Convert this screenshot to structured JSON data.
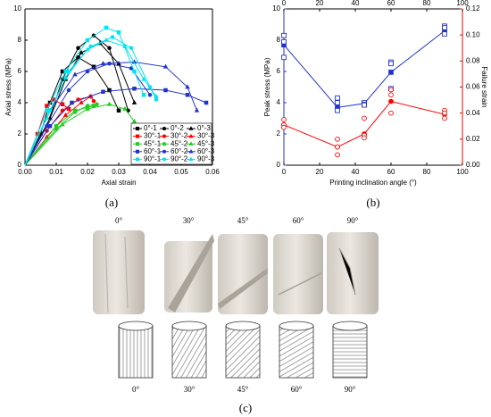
{
  "chart_data": [
    {
      "type": "line",
      "label": "(a)",
      "xlabel": "Axial strain",
      "ylabel": "Axial stress (MPa)",
      "xlim": [
        0,
        0.06
      ],
      "xticks": [
        {
          "value": 0,
          "label": "0.00"
        },
        {
          "value": 0.01,
          "label": "0.01"
        },
        {
          "value": 0.02,
          "label": "0.02"
        },
        {
          "value": 0.03,
          "label": "0.03"
        },
        {
          "value": 0.04,
          "label": "0.04"
        },
        {
          "value": 0.05,
          "label": "0.05"
        },
        {
          "value": 0.06,
          "label": "0.06"
        }
      ],
      "ylim": [
        0,
        10
      ],
      "yticks": [
        0,
        2,
        4,
        6,
        8,
        10
      ],
      "legend": "lower right",
      "series": [
        {
          "name": "0°-1",
          "color": "#000000",
          "marker": "square",
          "x": [
            0,
            0.005,
            0.008,
            0.012,
            0.017,
            0.022,
            0.027,
            0.03
          ],
          "values": [
            0,
            2,
            4,
            6,
            6.9,
            6.3,
            4.8,
            3.5
          ]
        },
        {
          "name": "0°-2",
          "color": "#000000",
          "marker": "circle",
          "x": [
            0,
            0.007,
            0.012,
            0.017,
            0.022,
            0.027,
            0.033
          ],
          "values": [
            0,
            2.5,
            5.5,
            7.5,
            8.3,
            7.5,
            3.5
          ]
        },
        {
          "name": "0°-3",
          "color": "#000000",
          "marker": "triangle",
          "x": [
            0,
            0.008,
            0.013,
            0.018,
            0.024,
            0.03,
            0.035
          ],
          "values": [
            0,
            3,
            5.5,
            7.2,
            7.8,
            6.5,
            4
          ]
        },
        {
          "name": "30°-1",
          "color": "#ff0000",
          "marker": "square",
          "x": [
            0,
            0.004,
            0.007,
            0.009,
            0.012,
            0.014
          ],
          "values": [
            0,
            2,
            3.8,
            4.2,
            3.9,
            3.6
          ]
        },
        {
          "name": "30°-2",
          "color": "#ff0000",
          "marker": "circle",
          "x": [
            0,
            0.007,
            0.012,
            0.017,
            0.021,
            0.022
          ],
          "values": [
            0,
            2.2,
            3.5,
            4.2,
            4.4,
            4.1
          ]
        },
        {
          "name": "30°-3",
          "color": "#ff0000",
          "marker": "triangle",
          "x": [
            0,
            0.007,
            0.013,
            0.018,
            0.021
          ],
          "values": [
            0,
            1.8,
            3.2,
            4,
            4.4
          ]
        },
        {
          "name": "45°-1",
          "color": "#22cc22",
          "marker": "square",
          "x": [
            0,
            0.01,
            0.016,
            0.02,
            0.022
          ],
          "values": [
            0,
            2.5,
            3.5,
            3.7,
            3.8
          ]
        },
        {
          "name": "45°-2",
          "color": "#22cc22",
          "marker": "circle",
          "x": [
            0,
            0.01,
            0.016,
            0.02,
            0.023
          ],
          "values": [
            0,
            2.3,
            3.4,
            3.8,
            3.9
          ]
        },
        {
          "name": "45°-3",
          "color": "#22cc22",
          "marker": "triangle",
          "x": [
            0,
            0.012,
            0.02,
            0.027,
            0.032,
            0.035
          ],
          "values": [
            0,
            2.6,
            3.6,
            3.9,
            3.6,
            2.8
          ]
        },
        {
          "name": "60°-1",
          "color": "#2233cc",
          "marker": "square",
          "x": [
            0,
            0.008,
            0.015,
            0.025,
            0.035,
            0.045,
            0.052,
            0.058
          ],
          "values": [
            0,
            2.5,
            4,
            4.7,
            4.9,
            4.8,
            4.5,
            4
          ]
        },
        {
          "name": "60°-2",
          "color": "#2233cc",
          "marker": "circle",
          "x": [
            0,
            0.007,
            0.014,
            0.02,
            0.027,
            0.034,
            0.04
          ],
          "values": [
            0,
            2.5,
            4.8,
            6,
            6.5,
            6.2,
            4.5
          ]
        },
        {
          "name": "60°-3",
          "color": "#2233cc",
          "marker": "triangle",
          "x": [
            0,
            0.008,
            0.016,
            0.025,
            0.035,
            0.045,
            0.052,
            0.055
          ],
          "values": [
            0,
            3.5,
            5.8,
            6.5,
            6.6,
            6.3,
            5,
            3.5
          ]
        },
        {
          "name": "90°-1",
          "color": "#00e5ee",
          "marker": "square",
          "x": [
            0,
            0.007,
            0.013,
            0.02,
            0.026,
            0.03,
            0.035,
            0.038
          ],
          "values": [
            0,
            3.5,
            6,
            8,
            8.8,
            8.5,
            6,
            4.5
          ]
        },
        {
          "name": "90°-2",
          "color": "#00e5ee",
          "marker": "circle",
          "x": [
            0,
            0.008,
            0.014,
            0.021,
            0.028,
            0.034,
            0.04,
            0.042
          ],
          "values": [
            0,
            3.5,
            6,
            7.6,
            8.2,
            7.5,
            5,
            4.2
          ]
        },
        {
          "name": "90°-3",
          "color": "#00e5ee",
          "marker": "triangle",
          "x": [
            0,
            0.007,
            0.013,
            0.02,
            0.026,
            0.032,
            0.038,
            0.042
          ],
          "values": [
            0,
            3,
            5.6,
            7.4,
            8,
            7.6,
            5.5,
            4.4
          ]
        }
      ]
    },
    {
      "type": "line",
      "label": "(b)",
      "xlabel": "Printing inclination angle (°)",
      "ylabel": "Peak stress (MPa)",
      "y2label": "Failure strain",
      "xlim": [
        0,
        100
      ],
      "xticks": [
        0,
        20,
        40,
        60,
        80,
        100
      ],
      "ylim": [
        0,
        10
      ],
      "yticks": [
        0,
        2,
        4,
        6,
        8,
        10
      ],
      "ycolor": "#2233cc",
      "y2lim": [
        0,
        0.12
      ],
      "y2ticks": [
        {
          "value": 0,
          "label": "0.00"
        },
        {
          "value": 0.02,
          "label": "0.02"
        },
        {
          "value": 0.04,
          "label": "0.04"
        },
        {
          "value": 0.06,
          "label": "0.06"
        },
        {
          "value": 0.08,
          "label": "0.08"
        },
        {
          "value": 0.1,
          "label": "0.10"
        },
        {
          "value": 0.12,
          "label": "0.12"
        }
      ],
      "y2color": "#ff0000",
      "series": [
        {
          "color": "#2233cc",
          "marker": "square",
          "filled": true,
          "connect": true,
          "x": [
            0,
            30,
            45,
            60,
            90
          ],
          "values": [
            7.7,
            3.7,
            3.95,
            5.95,
            8.6
          ]
        },
        {
          "color": "#2233cc",
          "marker": "square",
          "filled": false,
          "connect": false,
          "x": [
            0,
            0,
            0,
            30,
            30,
            30,
            45,
            45,
            45,
            60,
            60,
            60,
            90,
            90,
            90
          ],
          "values": [
            8.3,
            7.9,
            6.9,
            4.3,
            4,
            3.5,
            4,
            3.9,
            3.85,
            6.6,
            6.5,
            4.9,
            8.9,
            8.8,
            8.4
          ]
        },
        {
          "color": "#ff0000",
          "marker": "circle",
          "filled": true,
          "connect": true,
          "axis": "y2",
          "x": [
            0,
            30,
            45,
            60,
            90
          ],
          "values": [
            0.031,
            0.014,
            0.024,
            0.049,
            0.039
          ]
        },
        {
          "color": "#ff0000",
          "marker": "circle",
          "filled": false,
          "connect": false,
          "axis": "y2",
          "x": [
            0,
            0,
            0,
            30,
            30,
            30,
            45,
            45,
            45,
            60,
            60,
            60,
            90,
            90,
            90
          ],
          "values": [
            0.035,
            0.031,
            0.029,
            0.02,
            0.014,
            0.008,
            0.036,
            0.023,
            0.021,
            0.058,
            0.054,
            0.04,
            0.042,
            0.04,
            0.036
          ]
        }
      ]
    }
  ],
  "panel_c": {
    "label": "(c)",
    "photo_labels": [
      "0°",
      "30°",
      "45°",
      "60°",
      "90°"
    ],
    "diagram_labels": [
      "0°",
      "30°",
      "45°",
      "60°",
      "90°"
    ]
  }
}
